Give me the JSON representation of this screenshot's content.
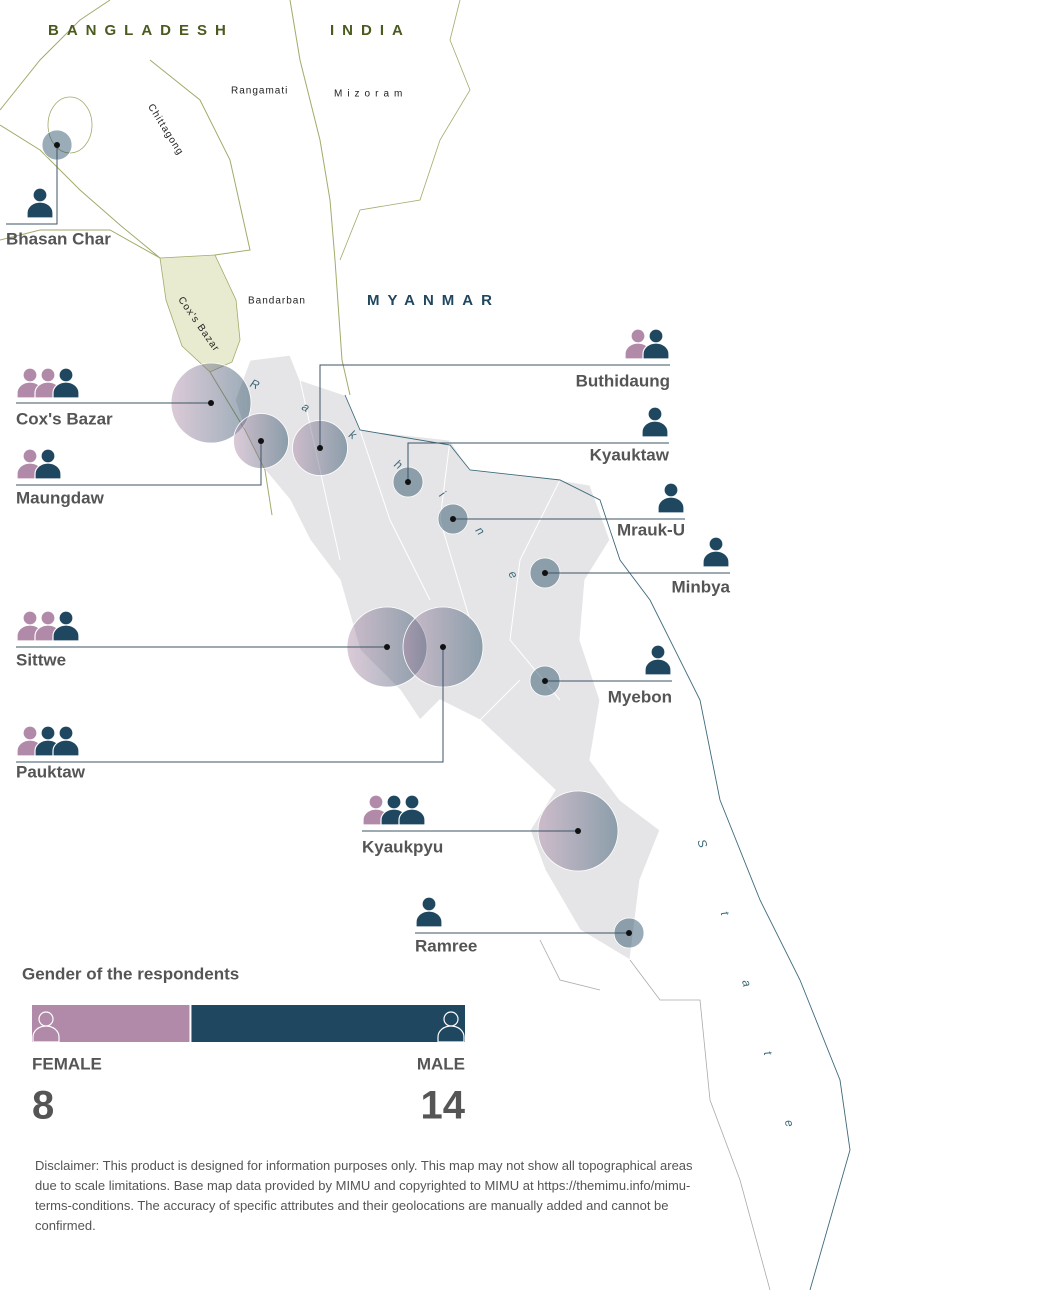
{
  "map": {
    "countries": [
      "BANGLADESH",
      "INDIA",
      "MYANMAR"
    ],
    "regions": [
      "Rangamati",
      "Mizoram",
      "Chittagong",
      "Cox's Bazar",
      "Bandarban"
    ],
    "state_label": [
      "Rakhine",
      "State"
    ],
    "locations": [
      {
        "name": "Bhasan Char",
        "female": 0,
        "male": 1
      },
      {
        "name": "Cox's Bazar",
        "female": 2,
        "male": 1
      },
      {
        "name": "Maungdaw",
        "female": 1,
        "male": 1
      },
      {
        "name": "Buthidaung",
        "female": 1,
        "male": 1
      },
      {
        "name": "Kyauktaw",
        "female": 0,
        "male": 1
      },
      {
        "name": "Mrauk-U",
        "female": 0,
        "male": 1
      },
      {
        "name": "Minbya",
        "female": 0,
        "male": 1
      },
      {
        "name": "Sittwe",
        "female": 2,
        "male": 1
      },
      {
        "name": "Pauktaw",
        "female": 1,
        "male": 2
      },
      {
        "name": "Myebon",
        "female": 0,
        "male": 1
      },
      {
        "name": "Kyaukpyu",
        "female": 1,
        "male": 2
      },
      {
        "name": "Ramree",
        "female": 0,
        "male": 1
      }
    ]
  },
  "gender": {
    "title": "Gender of the respondents",
    "female_label": "FEMALE",
    "male_label": "MALE",
    "female": 8,
    "male": 14,
    "female_color": "#b08aa8",
    "male_color": "#1f4760"
  },
  "disclaimer": "Disclaimer: This product is designed for information purposes only. This map may not show all topographical areas due to scale limitations. Base map data provided by MIMU and copyrighted to MIMU at https://themimu.info/mimu-terms-conditions. The accuracy of specific attributes and their geolocations are manually added and cannot be confirmed."
}
